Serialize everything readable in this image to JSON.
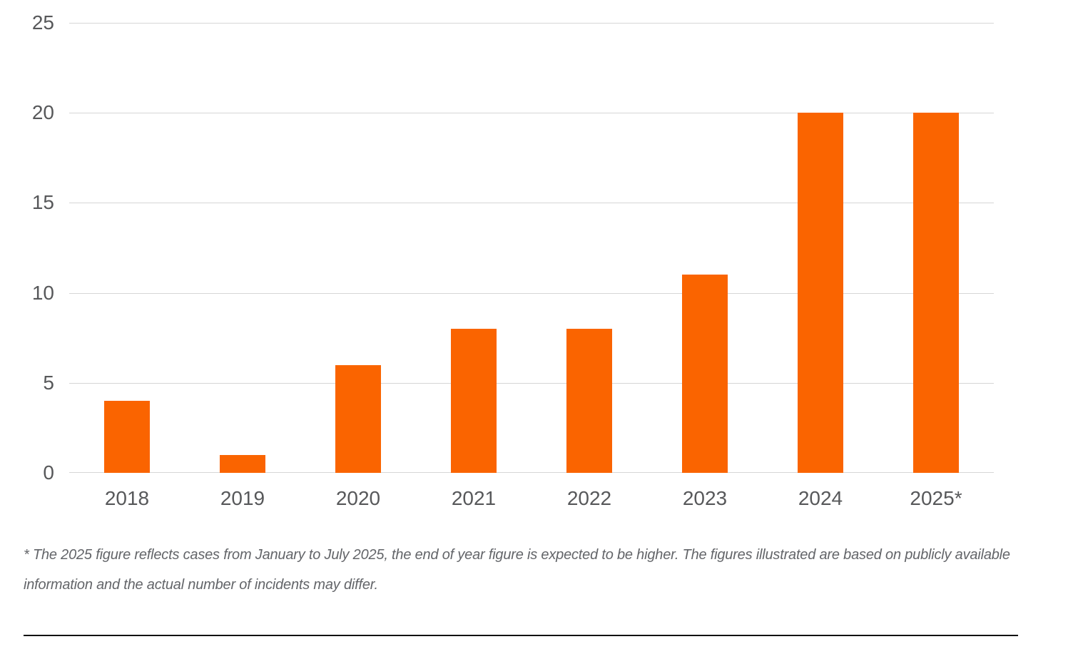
{
  "chart_data": {
    "type": "bar",
    "categories": [
      "2018",
      "2019",
      "2020",
      "2021",
      "2022",
      "2023",
      "2024",
      "2025*"
    ],
    "values": [
      4,
      1,
      6,
      8,
      8,
      11,
      20,
      20
    ],
    "title": "",
    "xlabel": "",
    "ylabel": "",
    "ylim": [
      0,
      25
    ],
    "yticks": [
      0,
      5,
      10,
      15,
      20,
      25
    ],
    "grid": true,
    "legend": "none"
  },
  "colors": {
    "bar": "#FA6400",
    "gridline": "#D6D6D6",
    "tick_label": "#57585A",
    "footnote": "#636569",
    "divider": "#111111"
  },
  "footnote": {
    "text": "* The 2025 figure reflects cases from January to July 2025, the end of year figure is expected to be higher. The figures illustrated are based on publicly available information and the actual number of incidents may differ."
  }
}
